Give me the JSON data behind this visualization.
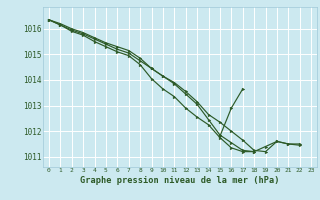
{
  "title": "Graphe pression niveau de la mer (hPa)",
  "bg_color": "#cce9f0",
  "grid_color": "#ffffff",
  "line_color": "#2d5a27",
  "marker_color": "#2d5a27",
  "xlim": [
    -0.5,
    23.5
  ],
  "ylim": [
    1010.6,
    1016.85
  ],
  "yticks": [
    1011,
    1012,
    1013,
    1014,
    1015,
    1016
  ],
  "xticks": [
    0,
    1,
    2,
    3,
    4,
    5,
    6,
    7,
    8,
    9,
    10,
    11,
    12,
    13,
    14,
    15,
    16,
    17,
    18,
    19,
    20,
    21,
    22,
    23
  ],
  "series": [
    [
      1016.35,
      1016.15,
      1015.95,
      1015.8,
      1015.6,
      1015.4,
      1015.2,
      1015.05,
      1014.75,
      1014.45,
      1014.15,
      1013.85,
      1013.45,
      1013.05,
      1012.45,
      1011.85,
      1011.55,
      1011.25,
      1011.2,
      1011.4,
      1011.6,
      1011.5,
      1011.45,
      null
    ],
    [
      1016.35,
      1016.2,
      1016.0,
      1015.85,
      1015.65,
      1015.45,
      1015.3,
      1015.15,
      1014.85,
      1014.45,
      1014.15,
      1013.9,
      1013.55,
      1013.15,
      1012.65,
      1012.35,
      1012.0,
      1011.65,
      1011.25,
      1011.2,
      1011.6,
      1011.5,
      1011.5,
      null
    ],
    [
      1016.35,
      1016.15,
      1015.9,
      1015.75,
      1015.5,
      1015.3,
      1015.1,
      1014.95,
      1014.6,
      1014.05,
      1013.65,
      1013.35,
      1012.9,
      1012.55,
      1012.25,
      1011.75,
      1011.35,
      1011.2,
      1011.2,
      null,
      null,
      null,
      null,
      null
    ],
    [
      null,
      null,
      null,
      null,
      null,
      null,
      null,
      null,
      null,
      null,
      null,
      null,
      null,
      null,
      null,
      1011.8,
      1012.9,
      1013.65,
      null,
      null,
      null,
      null,
      null,
      null
    ]
  ]
}
